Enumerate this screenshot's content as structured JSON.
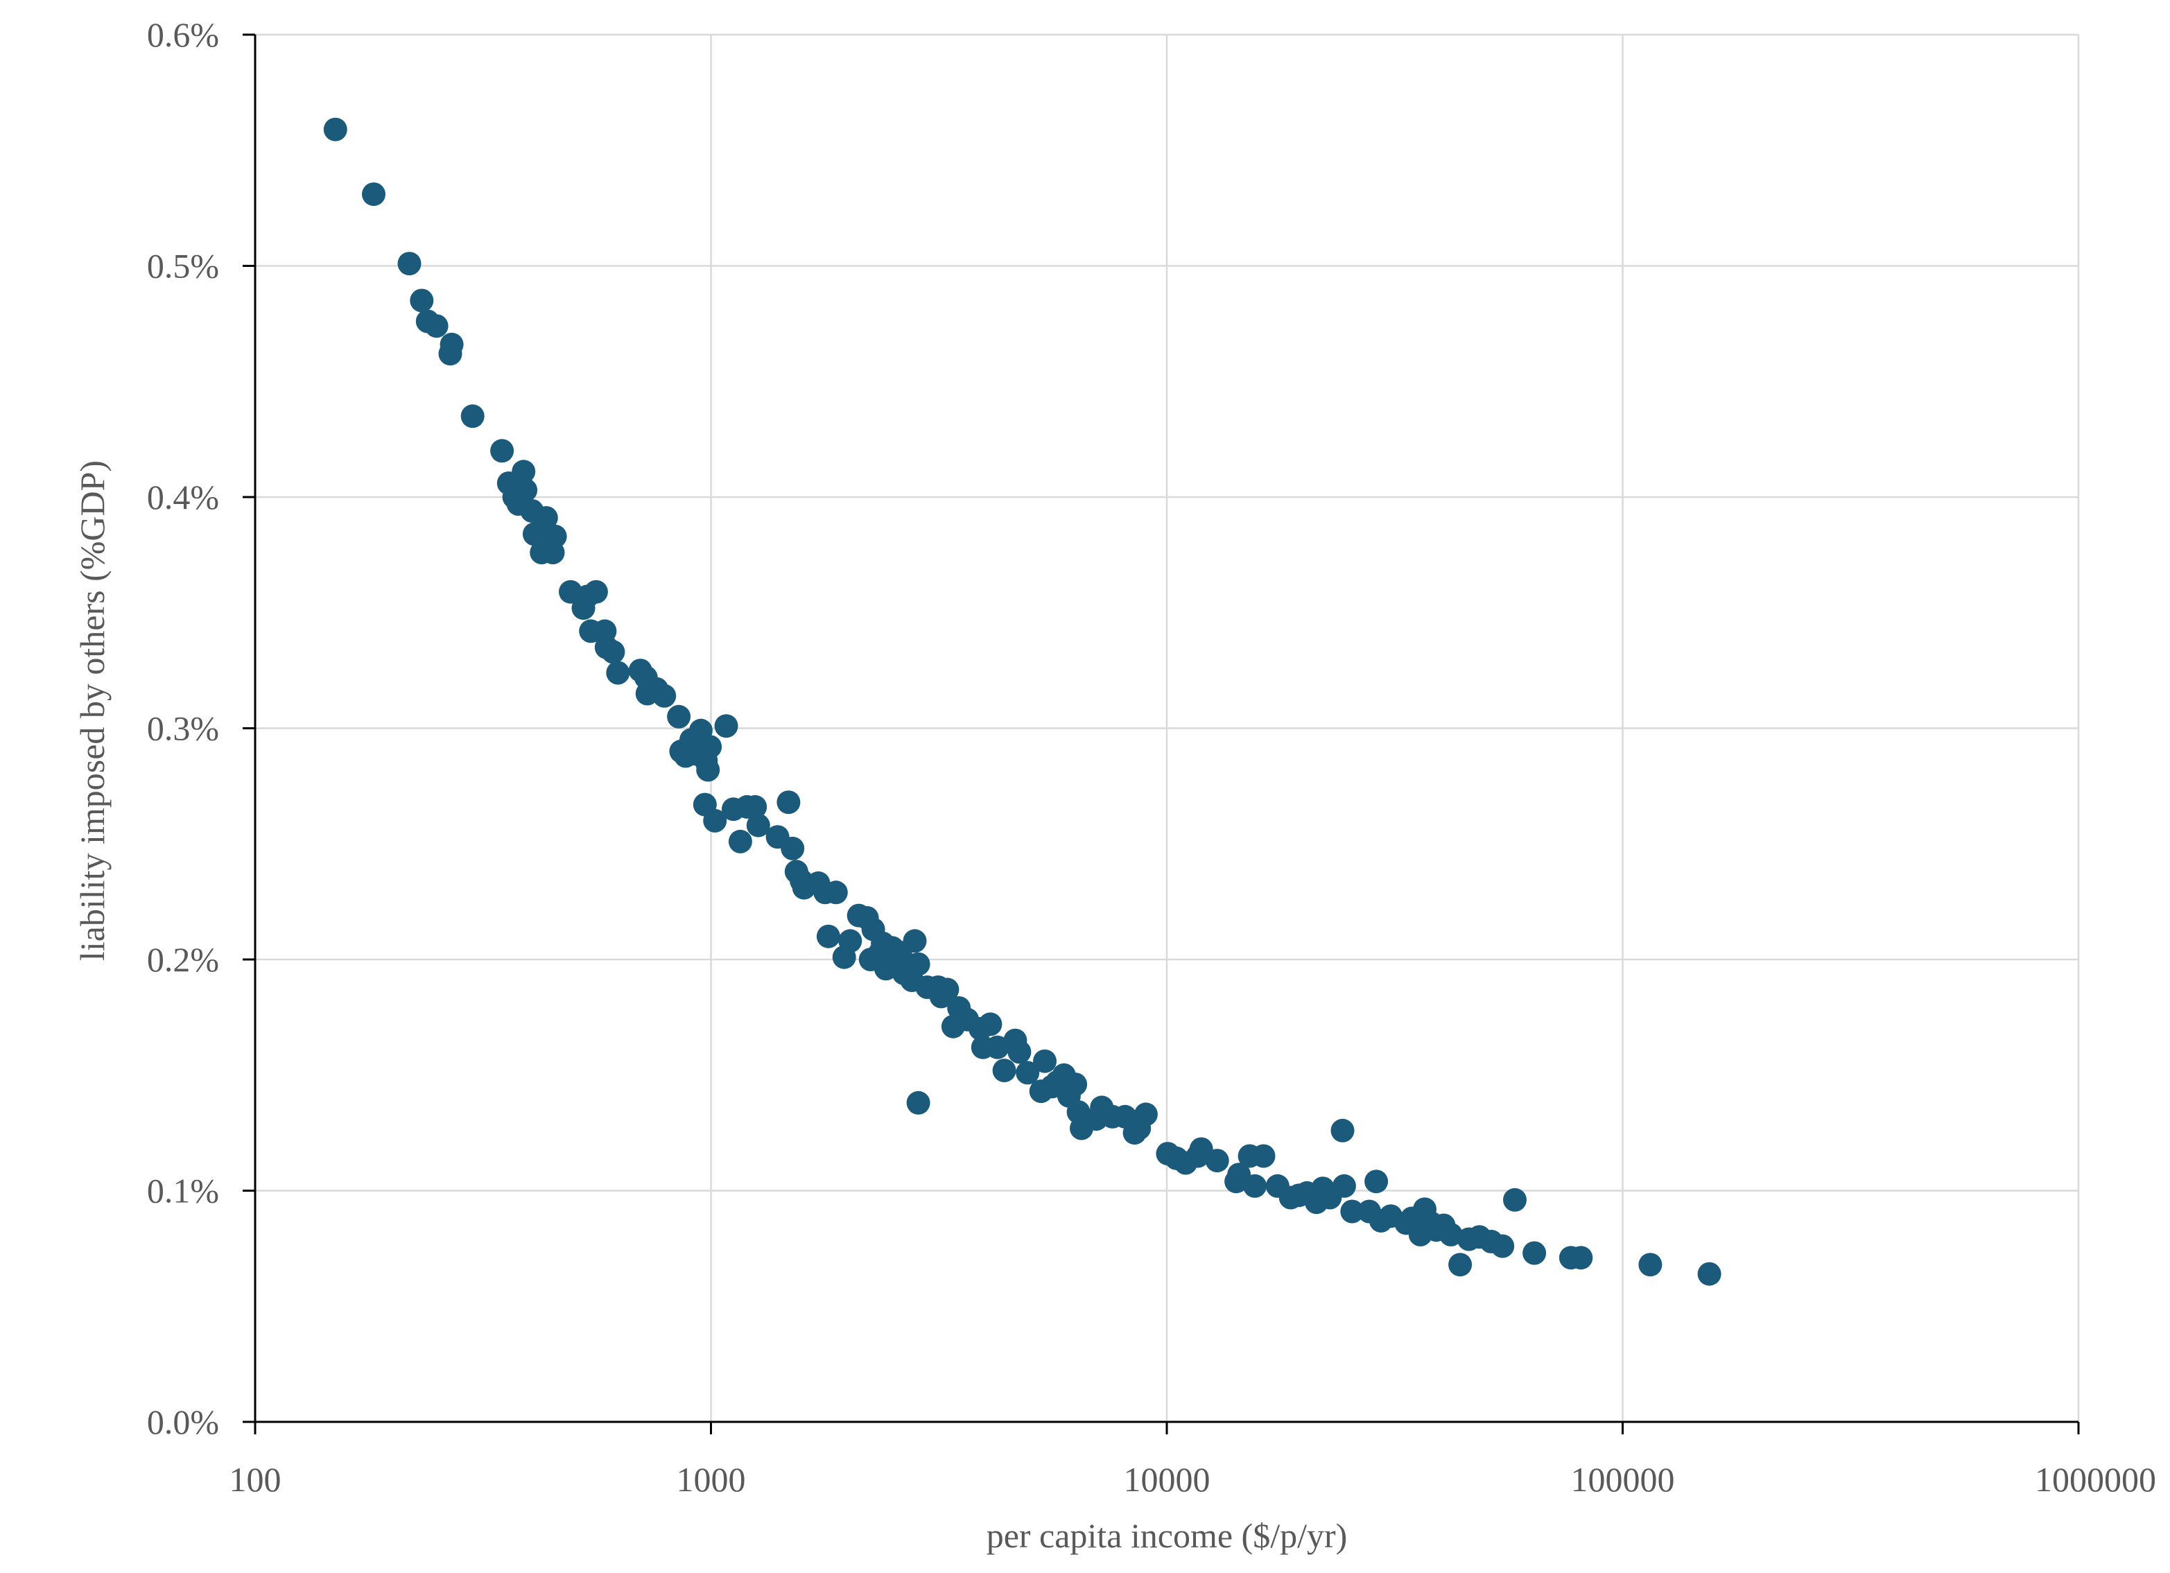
{
  "chart_data": {
    "type": "scatter",
    "title": "",
    "xlabel": "per capita income ($/p/yr)",
    "ylabel": "liability imposed by others (%GDP)",
    "x_scale": "log",
    "xlim": [
      100,
      1000000
    ],
    "ylim": [
      0,
      0.6
    ],
    "x_ticks": [
      "100",
      "1000",
      "10000",
      "100000",
      "1000000"
    ],
    "y_ticks": [
      "0.0%",
      "0.1%",
      "0.2%",
      "0.3%",
      "0.4%",
      "0.5%",
      "0.6%"
    ],
    "grid": true,
    "legend": "none",
    "marker_color": "#1b5a7a",
    "points": [
      [
        150,
        0.559
      ],
      [
        182,
        0.531
      ],
      [
        218,
        0.501
      ],
      [
        232,
        0.485
      ],
      [
        239,
        0.476
      ],
      [
        250,
        0.474
      ],
      [
        270,
        0.466
      ],
      [
        268,
        0.462
      ],
      [
        300,
        0.435
      ],
      [
        348,
        0.42
      ],
      [
        360,
        0.406
      ],
      [
        370,
        0.4
      ],
      [
        378,
        0.397
      ],
      [
        388,
        0.411
      ],
      [
        392,
        0.403
      ],
      [
        405,
        0.394
      ],
      [
        410,
        0.384
      ],
      [
        425,
        0.376
      ],
      [
        435,
        0.391
      ],
      [
        450,
        0.376
      ],
      [
        455,
        0.383
      ],
      [
        492,
        0.359
      ],
      [
        525,
        0.352
      ],
      [
        535,
        0.357
      ],
      [
        545,
        0.342
      ],
      [
        560,
        0.359
      ],
      [
        585,
        0.342
      ],
      [
        590,
        0.335
      ],
      [
        610,
        0.333
      ],
      [
        625,
        0.324
      ],
      [
        700,
        0.325
      ],
      [
        720,
        0.322
      ],
      [
        725,
        0.315
      ],
      [
        760,
        0.317
      ],
      [
        790,
        0.314
      ],
      [
        850,
        0.305
      ],
      [
        860,
        0.29
      ],
      [
        880,
        0.288
      ],
      [
        905,
        0.295
      ],
      [
        920,
        0.289
      ],
      [
        950,
        0.299
      ],
      [
        960,
        0.29
      ],
      [
        975,
        0.286
      ],
      [
        985,
        0.282
      ],
      [
        995,
        0.292
      ],
      [
        970,
        0.267
      ],
      [
        1020,
        0.26
      ],
      [
        1080,
        0.301
      ],
      [
        1120,
        0.265
      ],
      [
        1160,
        0.251
      ],
      [
        1200,
        0.266
      ],
      [
        1250,
        0.266
      ],
      [
        1270,
        0.258
      ],
      [
        1400,
        0.253
      ],
      [
        1480,
        0.268
      ],
      [
        1510,
        0.248
      ],
      [
        1540,
        0.238
      ],
      [
        1580,
        0.234
      ],
      [
        1600,
        0.231
      ],
      [
        1720,
        0.233
      ],
      [
        1780,
        0.229
      ],
      [
        1880,
        0.229
      ],
      [
        1810,
        0.21
      ],
      [
        1960,
        0.201
      ],
      [
        2020,
        0.208
      ],
      [
        2110,
        0.219
      ],
      [
        2200,
        0.218
      ],
      [
        2270,
        0.213
      ],
      [
        2240,
        0.2
      ],
      [
        2350,
        0.203
      ],
      [
        2380,
        0.207
      ],
      [
        2420,
        0.196
      ],
      [
        2500,
        0.205
      ],
      [
        2550,
        0.199
      ],
      [
        2600,
        0.203
      ],
      [
        2650,
        0.194
      ],
      [
        2700,
        0.198
      ],
      [
        2760,
        0.191
      ],
      [
        2800,
        0.208
      ],
      [
        2850,
        0.198
      ],
      [
        2850,
        0.138
      ],
      [
        2980,
        0.188
      ],
      [
        3150,
        0.188
      ],
      [
        3200,
        0.184
      ],
      [
        3300,
        0.187
      ],
      [
        3400,
        0.171
      ],
      [
        3500,
        0.179
      ],
      [
        3650,
        0.174
      ],
      [
        3900,
        0.17
      ],
      [
        3950,
        0.162
      ],
      [
        4100,
        0.172
      ],
      [
        4250,
        0.162
      ],
      [
        4400,
        0.152
      ],
      [
        4650,
        0.165
      ],
      [
        4750,
        0.16
      ],
      [
        4950,
        0.151
      ],
      [
        5300,
        0.143
      ],
      [
        5400,
        0.156
      ],
      [
        5600,
        0.145
      ],
      [
        5750,
        0.147
      ],
      [
        5950,
        0.15
      ],
      [
        6100,
        0.141
      ],
      [
        6300,
        0.146
      ],
      [
        6400,
        0.134
      ],
      [
        6500,
        0.127
      ],
      [
        7000,
        0.131
      ],
      [
        7200,
        0.136
      ],
      [
        7600,
        0.132
      ],
      [
        8100,
        0.132
      ],
      [
        8500,
        0.125
      ],
      [
        9000,
        0.133
      ],
      [
        8700,
        0.127
      ],
      [
        10050,
        0.116
      ],
      [
        10500,
        0.114
      ],
      [
        11000,
        0.112
      ],
      [
        11700,
        0.115
      ],
      [
        11900,
        0.118
      ],
      [
        12900,
        0.113
      ],
      [
        14200,
        0.104
      ],
      [
        14400,
        0.107
      ],
      [
        15200,
        0.115
      ],
      [
        15600,
        0.102
      ],
      [
        16300,
        0.115
      ],
      [
        17500,
        0.102
      ],
      [
        18700,
        0.097
      ],
      [
        19500,
        0.098
      ],
      [
        20300,
        0.099
      ],
      [
        21300,
        0.095
      ],
      [
        22000,
        0.101
      ],
      [
        22800,
        0.097
      ],
      [
        24500,
        0.102
      ],
      [
        24300,
        0.126
      ],
      [
        25500,
        0.091
      ],
      [
        27800,
        0.091
      ],
      [
        28800,
        0.104
      ],
      [
        29500,
        0.087
      ],
      [
        31000,
        0.089
      ],
      [
        33500,
        0.086
      ],
      [
        34500,
        0.088
      ],
      [
        36000,
        0.081
      ],
      [
        36800,
        0.092
      ],
      [
        38000,
        0.086
      ],
      [
        39000,
        0.083
      ],
      [
        40500,
        0.085
      ],
      [
        42000,
        0.081
      ],
      [
        44000,
        0.068
      ],
      [
        46000,
        0.079
      ],
      [
        48500,
        0.08
      ],
      [
        51500,
        0.078
      ],
      [
        54500,
        0.076
      ],
      [
        58000,
        0.096
      ],
      [
        64000,
        0.073
      ],
      [
        77000,
        0.071
      ],
      [
        81000,
        0.071
      ],
      [
        115000,
        0.068
      ],
      [
        155000,
        0.064
      ]
    ]
  }
}
